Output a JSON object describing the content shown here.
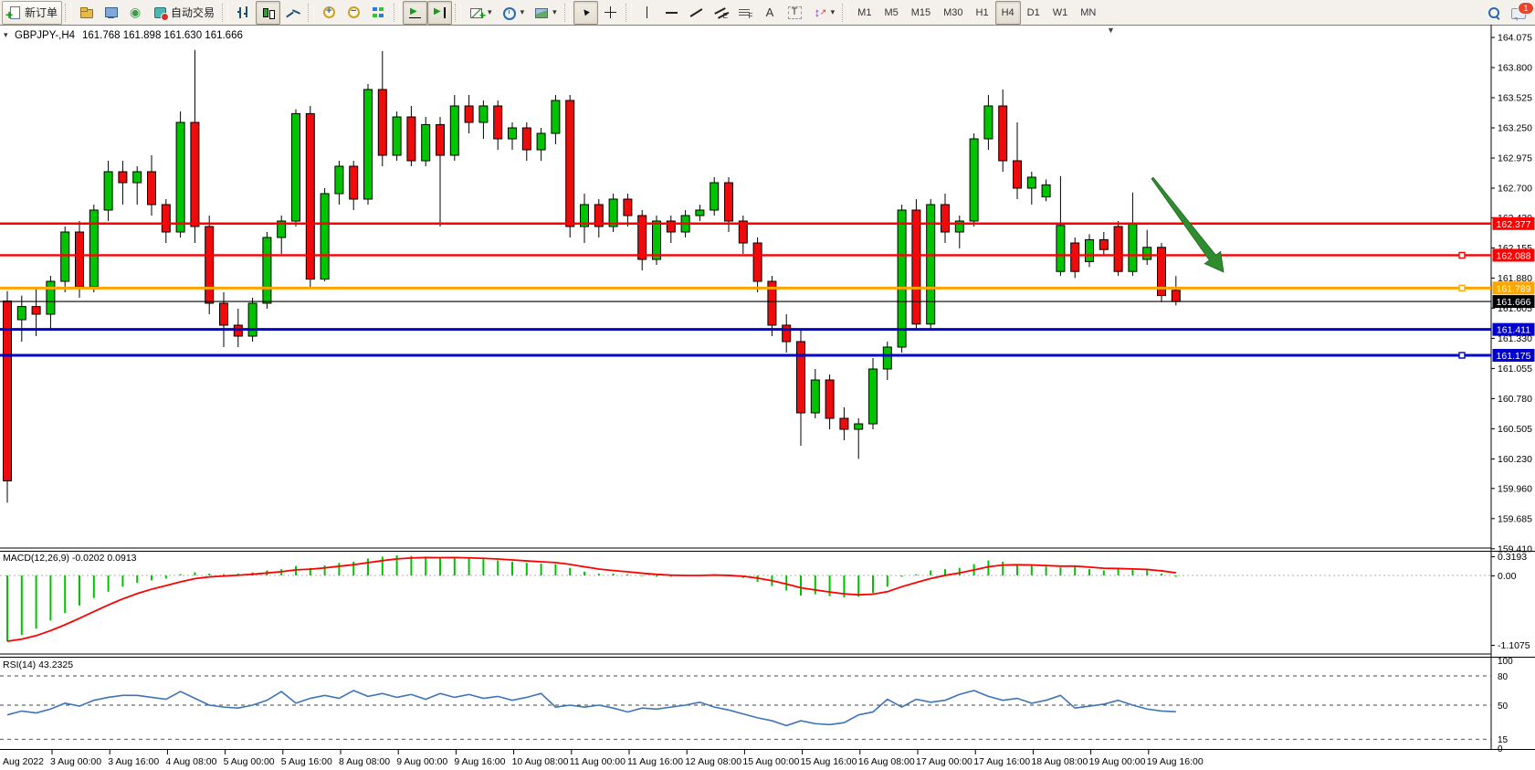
{
  "toolbar": {
    "caret_char": "▾",
    "items": [
      {
        "type": "btn",
        "name": "new-order-button",
        "icon": "new-order",
        "label": "新订单",
        "framed": true
      },
      {
        "type": "sep"
      },
      {
        "type": "btn",
        "name": "profiles-button",
        "icon": "profiles"
      },
      {
        "type": "btn",
        "name": "market-watch-button",
        "icon": "market-watch"
      },
      {
        "type": "btn",
        "name": "signals-button",
        "icon": "signals"
      },
      {
        "type": "btn",
        "name": "auto-trading-button",
        "icon": "auto-trading",
        "label": "自动交易"
      },
      {
        "type": "sep"
      },
      {
        "type": "btn",
        "name": "bar-chart-button",
        "icon": "bar-chart"
      },
      {
        "type": "btn",
        "name": "candlestick-button",
        "icon": "candlestick",
        "active": true
      },
      {
        "type": "btn",
        "name": "line-chart-button",
        "icon": "line-chart"
      },
      {
        "type": "sep"
      },
      {
        "type": "btn",
        "name": "zoom-in-button",
        "icon": "zoom-in"
      },
      {
        "type": "btn",
        "name": "zoom-out-button",
        "icon": "zoom-out"
      },
      {
        "type": "btn",
        "name": "tile-windows-button",
        "icon": "tile-windows"
      },
      {
        "type": "sep"
      },
      {
        "type": "btn",
        "name": "auto-scroll-button",
        "icon": "auto-scroll",
        "active": true
      },
      {
        "type": "btn",
        "name": "chart-shift-button",
        "icon": "chart-shift",
        "active": true
      },
      {
        "type": "sep"
      },
      {
        "type": "btn",
        "name": "indicators-button",
        "icon": "indicators",
        "dropdown": true
      },
      {
        "type": "btn",
        "name": "periods-button",
        "icon": "clock",
        "dropdown": true
      },
      {
        "type": "btn",
        "name": "templates-button",
        "icon": "template",
        "dropdown": true
      },
      {
        "type": "sep"
      },
      {
        "type": "btn",
        "name": "cursor-button",
        "icon": "cursor",
        "active": true
      },
      {
        "type": "btn",
        "name": "crosshair-button",
        "icon": "crosshair"
      },
      {
        "type": "sep"
      },
      {
        "type": "btn",
        "name": "vertical-line-button",
        "icon": "vertical-line"
      },
      {
        "type": "btn",
        "name": "horizontal-line-button",
        "icon": "horizontal-line"
      },
      {
        "type": "btn",
        "name": "trendline-button",
        "icon": "trendline"
      },
      {
        "type": "btn",
        "name": "channel-button",
        "icon": "channel"
      },
      {
        "type": "btn",
        "name": "fibonacci-button",
        "icon": "fibonacci"
      },
      {
        "type": "btn",
        "name": "text-button",
        "icon": "text"
      },
      {
        "type": "btn",
        "name": "text-label-button",
        "icon": "text-label"
      },
      {
        "type": "btn",
        "name": "arrows-button",
        "icon": "arrows",
        "dropdown": true
      },
      {
        "type": "sep"
      },
      {
        "type": "btn",
        "name": "timeframe-m1-button",
        "tf": true,
        "label": "M1"
      },
      {
        "type": "btn",
        "name": "timeframe-m5-button",
        "tf": true,
        "label": "M5"
      },
      {
        "type": "btn",
        "name": "timeframe-m15-button",
        "tf": true,
        "label": "M15"
      },
      {
        "type": "btn",
        "name": "timeframe-m30-button",
        "tf": true,
        "label": "M30"
      },
      {
        "type": "btn",
        "name": "timeframe-h1-button",
        "tf": true,
        "label": "H1"
      },
      {
        "type": "btn",
        "name": "timeframe-h4-button",
        "tf": true,
        "label": "H4",
        "active": true
      },
      {
        "type": "btn",
        "name": "timeframe-d1-button",
        "tf": true,
        "label": "D1"
      },
      {
        "type": "btn",
        "name": "timeframe-w1-button",
        "tf": true,
        "label": "W1"
      },
      {
        "type": "btn",
        "name": "timeframe-mn-button",
        "tf": true,
        "label": "MN"
      }
    ],
    "right": [
      {
        "type": "btn",
        "name": "search-button",
        "icon": "search"
      },
      {
        "type": "btn",
        "name": "notifications-button",
        "icon": "chat",
        "badge": "1"
      }
    ]
  },
  "chart": {
    "collapse_marker": "▾",
    "symbol_period": "GBPJPY-,H4",
    "ohlc_readout": "161.768 161.898 161.630 161.666",
    "shift_marker": "▼"
  },
  "macd_panel": {
    "label": "MACD(12,26,9) -0.0202 0.0913"
  },
  "rsi_panel": {
    "label": "RSI(14) 43.2325"
  },
  "chart_data": {
    "type": "candlestick",
    "symbol": "GBPJPY-",
    "timeframe": "H4",
    "current_bar": {
      "open": 161.768,
      "high": 161.898,
      "low": 161.63,
      "close": 161.666
    },
    "colors": {
      "bull": "#00C400",
      "bear": "#EE0B0B",
      "outline": "#000000",
      "macd_hist": "#00C400",
      "macd_signal": "#FF0000",
      "rsi_line": "#3E74B5",
      "arrow": "#2E8B2E"
    },
    "price_axis_ticks": [
      "164.075",
      "163.800",
      "163.525",
      "163.250",
      "162.975",
      "162.700",
      "162.430",
      "162.155",
      "161.880",
      "161.605",
      "161.330",
      "161.055",
      "160.780",
      "160.505",
      "160.230",
      "159.960",
      "159.685",
      "159.410"
    ],
    "time_labels": [
      "Aug 2022",
      "3 Aug 00:00",
      "3 Aug 16:00",
      "4 Aug 08:00",
      "5 Aug 00:00",
      "5 Aug 16:00",
      "8 Aug 08:00",
      "9 Aug 00:00",
      "9 Aug 16:00",
      "10 Aug 08:00",
      "11 Aug 00:00",
      "11 Aug 16:00",
      "12 Aug 08:00",
      "15 Aug 00:00",
      "15 Aug 16:00",
      "16 Aug 08:00",
      "17 Aug 00:00",
      "17 Aug 16:00",
      "18 Aug 08:00",
      "19 Aug 00:00",
      "19 Aug 16:00"
    ],
    "levels": [
      {
        "label": "162.377",
        "price": 162.377,
        "color": "#FF0000",
        "width": 2.4,
        "marker": false
      },
      {
        "label": "162.088",
        "price": 162.088,
        "color": "#FF0000",
        "width": 2.4,
        "marker": true
      },
      {
        "label": "161.789",
        "price": 161.789,
        "color": "#FFA500",
        "width": 3,
        "marker": true
      },
      {
        "label": "161.411",
        "price": 161.411,
        "color": "#0000CC",
        "width": 3,
        "marker": false
      },
      {
        "label": "161.175",
        "price": 161.175,
        "color": "#0000CC",
        "width": 3,
        "marker": true
      },
      {
        "label": "161.666",
        "price": 161.666,
        "color": "#000000",
        "width": 1.2,
        "marker": false,
        "current": true
      }
    ],
    "candles": [
      [
        161.67,
        161.76,
        159.83,
        160.03
      ],
      [
        161.5,
        161.72,
        161.3,
        161.62
      ],
      [
        161.62,
        161.8,
        161.35,
        161.55
      ],
      [
        161.55,
        161.9,
        161.4,
        161.85
      ],
      [
        161.85,
        162.35,
        161.75,
        162.3
      ],
      [
        162.3,
        162.4,
        161.7,
        161.8
      ],
      [
        161.8,
        162.55,
        161.75,
        162.5
      ],
      [
        162.5,
        162.95,
        162.4,
        162.85
      ],
      [
        162.85,
        162.95,
        162.55,
        162.75
      ],
      [
        162.75,
        162.9,
        162.55,
        162.85
      ],
      [
        162.85,
        163.0,
        162.45,
        162.55
      ],
      [
        162.55,
        162.6,
        162.2,
        162.3
      ],
      [
        162.3,
        163.4,
        162.25,
        163.3
      ],
      [
        163.3,
        163.96,
        162.2,
        162.35
      ],
      [
        162.35,
        162.45,
        161.55,
        161.65
      ],
      [
        161.65,
        161.75,
        161.25,
        161.45
      ],
      [
        161.45,
        161.6,
        161.25,
        161.35
      ],
      [
        161.35,
        161.7,
        161.3,
        161.65
      ],
      [
        161.65,
        162.3,
        161.6,
        162.25
      ],
      [
        162.25,
        162.45,
        162.1,
        162.4
      ],
      [
        162.4,
        163.42,
        162.35,
        163.38
      ],
      [
        163.38,
        163.45,
        161.8,
        161.87
      ],
      [
        161.87,
        162.7,
        161.85,
        162.65
      ],
      [
        162.65,
        162.95,
        162.55,
        162.9
      ],
      [
        162.9,
        162.95,
        162.5,
        162.6
      ],
      [
        162.6,
        163.65,
        162.55,
        163.6
      ],
      [
        163.6,
        163.95,
        162.9,
        163.0
      ],
      [
        163.0,
        163.4,
        162.95,
        163.35
      ],
      [
        163.35,
        163.45,
        162.9,
        162.95
      ],
      [
        162.95,
        163.35,
        162.9,
        163.28
      ],
      [
        163.28,
        163.35,
        162.35,
        163.0
      ],
      [
        163.0,
        163.55,
        162.95,
        163.45
      ],
      [
        163.45,
        163.55,
        163.2,
        163.3
      ],
      [
        163.3,
        163.5,
        163.15,
        163.45
      ],
      [
        163.45,
        163.5,
        163.05,
        163.15
      ],
      [
        163.15,
        163.3,
        163.05,
        163.25
      ],
      [
        163.25,
        163.3,
        162.95,
        163.05
      ],
      [
        163.05,
        163.25,
        162.95,
        163.2
      ],
      [
        163.2,
        163.55,
        163.1,
        163.5
      ],
      [
        163.5,
        163.55,
        162.25,
        162.35
      ],
      [
        162.35,
        162.65,
        162.2,
        162.55
      ],
      [
        162.55,
        162.6,
        162.25,
        162.35
      ],
      [
        162.35,
        162.65,
        162.3,
        162.6
      ],
      [
        162.6,
        162.65,
        162.35,
        162.45
      ],
      [
        162.45,
        162.5,
        161.95,
        162.05
      ],
      [
        162.05,
        162.45,
        162.0,
        162.4
      ],
      [
        162.4,
        162.45,
        162.2,
        162.3
      ],
      [
        162.3,
        162.5,
        162.25,
        162.45
      ],
      [
        162.45,
        162.55,
        162.4,
        162.5
      ],
      [
        162.5,
        162.8,
        162.45,
        162.75
      ],
      [
        162.75,
        162.8,
        162.3,
        162.4
      ],
      [
        162.4,
        162.45,
        162.1,
        162.2
      ],
      [
        162.2,
        162.25,
        161.75,
        161.85
      ],
      [
        161.85,
        161.9,
        161.35,
        161.45
      ],
      [
        161.45,
        161.55,
        161.2,
        161.3
      ],
      [
        161.3,
        161.4,
        160.35,
        160.65
      ],
      [
        160.65,
        161.05,
        160.6,
        160.95
      ],
      [
        160.95,
        161.0,
        160.5,
        160.6
      ],
      [
        160.6,
        160.7,
        160.4,
        160.5
      ],
      [
        160.5,
        160.6,
        160.23,
        160.55
      ],
      [
        160.55,
        161.15,
        160.5,
        161.05
      ],
      [
        161.05,
        161.3,
        160.95,
        161.25
      ],
      [
        161.25,
        162.55,
        161.2,
        162.5
      ],
      [
        162.5,
        162.6,
        161.4,
        161.46
      ],
      [
        161.46,
        162.6,
        161.42,
        162.55
      ],
      [
        162.55,
        162.65,
        162.2,
        162.3
      ],
      [
        162.3,
        162.45,
        162.15,
        162.4
      ],
      [
        162.4,
        163.2,
        162.35,
        163.15
      ],
      [
        163.15,
        163.55,
        163.05,
        163.45
      ],
      [
        163.45,
        163.6,
        162.85,
        162.95
      ],
      [
        162.95,
        163.3,
        162.6,
        162.7
      ],
      [
        162.7,
        162.85,
        162.55,
        162.8
      ],
      [
        162.62,
        162.78,
        162.58,
        162.73
      ],
      [
        161.94,
        162.81,
        161.9,
        162.36
      ],
      [
        162.2,
        162.25,
        161.88,
        161.94
      ],
      [
        162.03,
        162.28,
        161.98,
        162.23
      ],
      [
        162.23,
        162.3,
        162.08,
        162.14
      ],
      [
        162.35,
        162.4,
        161.9,
        161.94
      ],
      [
        161.94,
        162.66,
        161.9,
        162.37
      ],
      [
        162.05,
        162.32,
        162.0,
        162.16
      ],
      [
        162.16,
        162.2,
        161.66,
        161.72
      ],
      [
        161.768,
        161.898,
        161.63,
        161.666
      ]
    ],
    "macd": {
      "params": "12,26,9",
      "axis_labels": [
        "0.3193",
        "0.00",
        "-1.1075"
      ],
      "last_main": -0.0202,
      "last_signal": 0.0913,
      "histogram": [
        -1.05,
        -0.95,
        -0.85,
        -0.72,
        -0.6,
        -0.48,
        -0.36,
        -0.26,
        -0.18,
        -0.12,
        -0.08,
        -0.05,
        0.02,
        0.05,
        0.03,
        0.02,
        0.03,
        0.05,
        0.08,
        0.1,
        0.15,
        0.12,
        0.16,
        0.2,
        0.22,
        0.27,
        0.3,
        0.32,
        0.31,
        0.3,
        0.28,
        0.29,
        0.27,
        0.26,
        0.24,
        0.22,
        0.2,
        0.19,
        0.18,
        0.12,
        0.06,
        0.03,
        0.03,
        0.02,
        -0.01,
        -0.02,
        -0.02,
        -0.01,
        0.0,
        0.02,
        -0.01,
        -0.04,
        -0.1,
        -0.17,
        -0.24,
        -0.32,
        -0.3,
        -0.33,
        -0.35,
        -0.34,
        -0.28,
        -0.18,
        -0.02,
        0.02,
        0.08,
        0.1,
        0.12,
        0.18,
        0.24,
        0.22,
        0.18,
        0.16,
        0.14,
        0.13,
        0.15,
        0.1,
        0.08,
        0.1,
        0.09,
        0.08,
        0.03,
        -0.0202
      ]
    },
    "rsi": {
      "period": 14,
      "last": 43.2325,
      "axis_labels": [
        "100",
        "80",
        "50",
        "15",
        "0"
      ],
      "guide_levels": [
        80,
        50,
        15
      ],
      "values": [
        40,
        44,
        42,
        46,
        52,
        49,
        55,
        58,
        60,
        60,
        58,
        56,
        64,
        57,
        50,
        48,
        47,
        50,
        55,
        64,
        52,
        57,
        60,
        57,
        65,
        59,
        62,
        58,
        61,
        56,
        62,
        58,
        61,
        57,
        59,
        55,
        58,
        62,
        48,
        50,
        48,
        50,
        47,
        43,
        47,
        46,
        48,
        50,
        53,
        48,
        45,
        41,
        37,
        34,
        29,
        34,
        31,
        30,
        32,
        40,
        43,
        56,
        48,
        56,
        53,
        55,
        61,
        65,
        59,
        55,
        57,
        52,
        55,
        60,
        47,
        49,
        51,
        55,
        50,
        46,
        44,
        43.2325
      ]
    },
    "annotations": [
      {
        "type": "arrow",
        "from": [
          1262,
          195
        ],
        "to": [
          1340,
          298
        ],
        "color": "#2E8B2E",
        "edge": "#1E6B1E"
      }
    ]
  }
}
